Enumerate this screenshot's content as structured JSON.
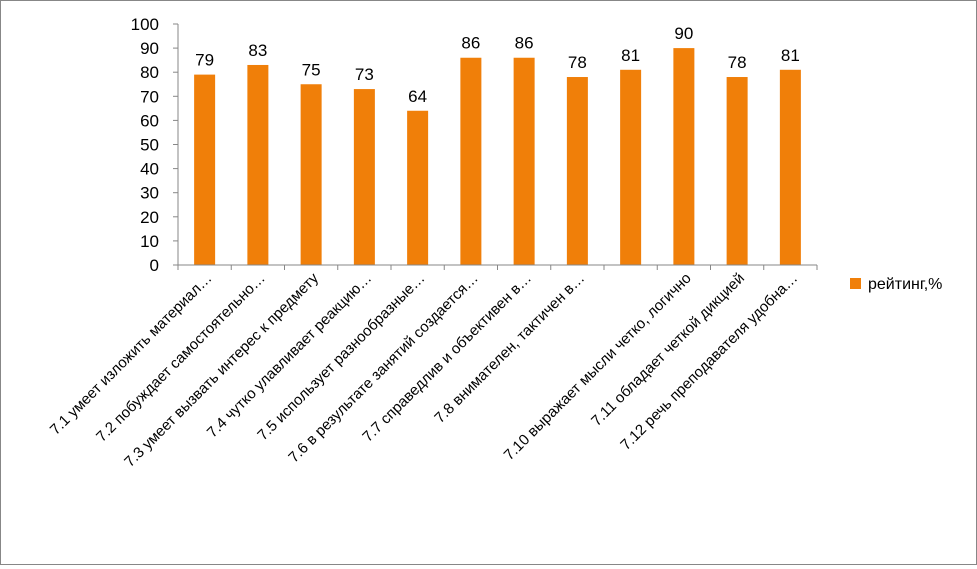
{
  "chart_data": {
    "type": "bar",
    "categories": [
      "7.1 умеет изложить материал…",
      "7.2 побуждает самостоятельно…",
      "7.3 умеет вызвать интерес к предмету",
      "7.4 чутко улавливает реакцию…",
      "7.5 использует разнообразные…",
      "7.6 в результате занятий создается…",
      "7.7 справедлив и объективен в…",
      "7.8 внимателен, тактичен в…",
      "",
      "7.10 выражает мысли четко, логично",
      "7.11 обладает четкой дикцией",
      "7.12 речь преподавателя удобна…"
    ],
    "series": [
      {
        "name": "рейтинг,%",
        "values": [
          79,
          83,
          75,
          73,
          64,
          86,
          86,
          78,
          81,
          90,
          78,
          81
        ],
        "color": "#f07f09"
      }
    ],
    "data_labels": [
      "79",
      "83",
      "75",
      "73",
      "64",
      "86",
      "86",
      "78",
      "81",
      "90",
      "78",
      "81"
    ],
    "ylim": [
      0,
      100
    ],
    "yticks": [
      "0",
      "10",
      "20",
      "30",
      "40",
      "50",
      "60",
      "70",
      "80",
      "90",
      "100"
    ],
    "grid": false,
    "legend_position": "right",
    "axis_color": "#878787"
  }
}
